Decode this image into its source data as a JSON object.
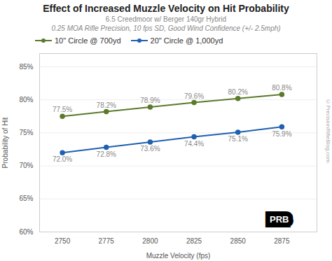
{
  "chart_data": {
    "type": "line",
    "title": "Effect of Increased Muzzle Velocity on Hit Probability",
    "subtitle": [
      "6.5 Creedmoor w/ Berger 140gr Hybrid",
      "0.25 MOA Rifle Precision, 10 fps SD, Good Wind Confidence (+/- 2.5mph)"
    ],
    "xlabel": "Muzzle Velocity (fps)",
    "ylabel": "Probability of Hit",
    "x": [
      2750,
      2775,
      2800,
      2825,
      2850,
      2875
    ],
    "series": [
      {
        "name": "10\" Circle @ 700yd",
        "color": "#5b7a2b",
        "marker": "circle",
        "values": [
          77.5,
          78.2,
          78.9,
          79.6,
          80.2,
          80.8
        ],
        "value_labels": [
          "77.5%",
          "78.2%",
          "78.9%",
          "79.6%",
          "80.2%",
          "80.8%"
        ]
      },
      {
        "name": "20\" Circle @ 1,000yd",
        "color": "#2060b0",
        "marker": "circle",
        "values": [
          72.0,
          72.8,
          73.6,
          74.4,
          75.1,
          75.9
        ],
        "value_labels": [
          "72.0%",
          "72.8%",
          "73.6%",
          "74.4%",
          "75.1%",
          "75.9%"
        ]
      }
    ],
    "xlim": [
      2737,
      2895
    ],
    "xticks": [
      2750,
      2775,
      2800,
      2825,
      2850,
      2875
    ],
    "ylim": [
      60,
      87
    ],
    "yticks": [
      {
        "value": 60,
        "label": "60%"
      },
      {
        "value": 65,
        "label": "65%"
      },
      {
        "value": 70,
        "label": "70%"
      },
      {
        "value": 75,
        "label": "75%"
      },
      {
        "value": 80,
        "label": "80%"
      },
      {
        "value": 85,
        "label": "85%"
      }
    ],
    "grid": true,
    "legend": "upper left",
    "data_labels": true,
    "annotations": [
      "©PrecisionRifleBlog.com",
      "PRB"
    ]
  }
}
